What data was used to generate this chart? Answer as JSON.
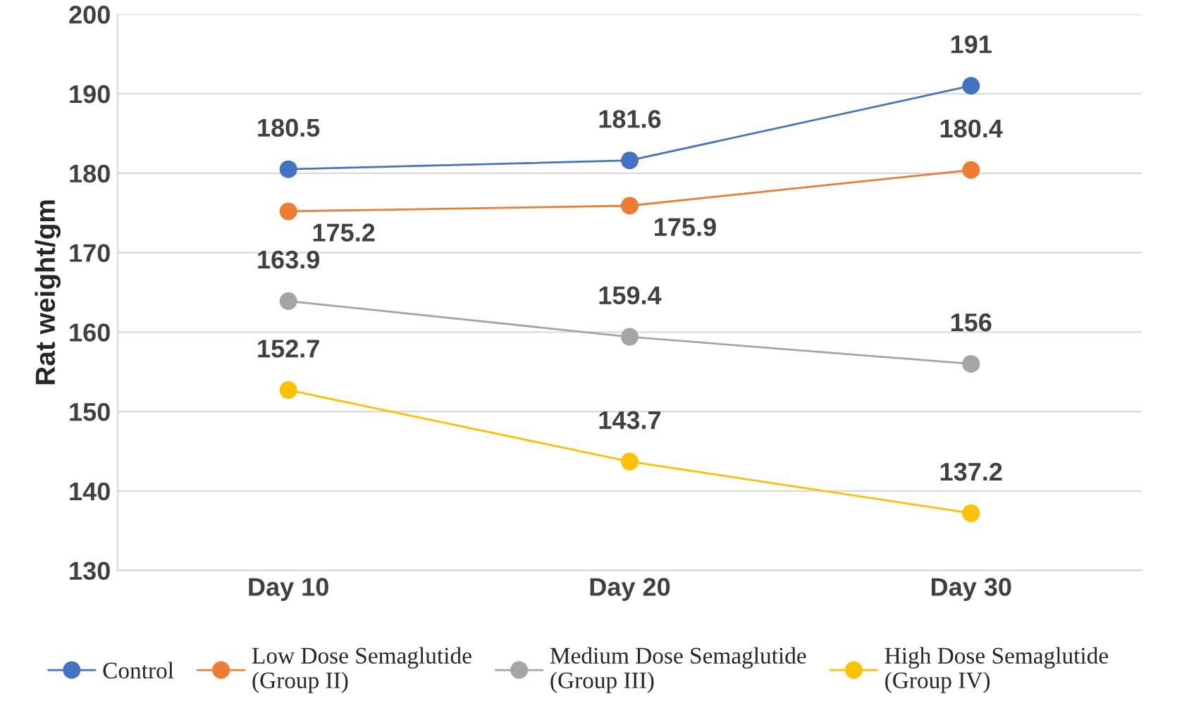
{
  "chart_data": {
    "type": "line",
    "ylabel": "Rat weight/gm",
    "categories": [
      "Day 10",
      "Day 20",
      "Day 30"
    ],
    "series": [
      {
        "name": "Control",
        "color": "#4472c4",
        "values": [
          180.5,
          181.6,
          191
        ]
      },
      {
        "name": "Low Dose Semaglutide\n(Group II)",
        "color": "#ed7d31",
        "values": [
          175.2,
          175.9,
          180.4
        ]
      },
      {
        "name": "Medium Dose Semaglutide\n(Group III)",
        "color": "#a5a5a5",
        "values": [
          163.9,
          159.4,
          156
        ]
      },
      {
        "name": "High Dose Semaglutide\n(Group IV)",
        "color": "#ffc000",
        "values": [
          152.7,
          143.7,
          137.2
        ]
      }
    ],
    "ylim": [
      130,
      200
    ],
    "yticks": [
      130,
      140,
      150,
      160,
      170,
      180,
      190,
      200
    ],
    "grid": "y",
    "legend": "bottom",
    "marker": "circle",
    "line_style": "solid",
    "data_labels": true
  }
}
